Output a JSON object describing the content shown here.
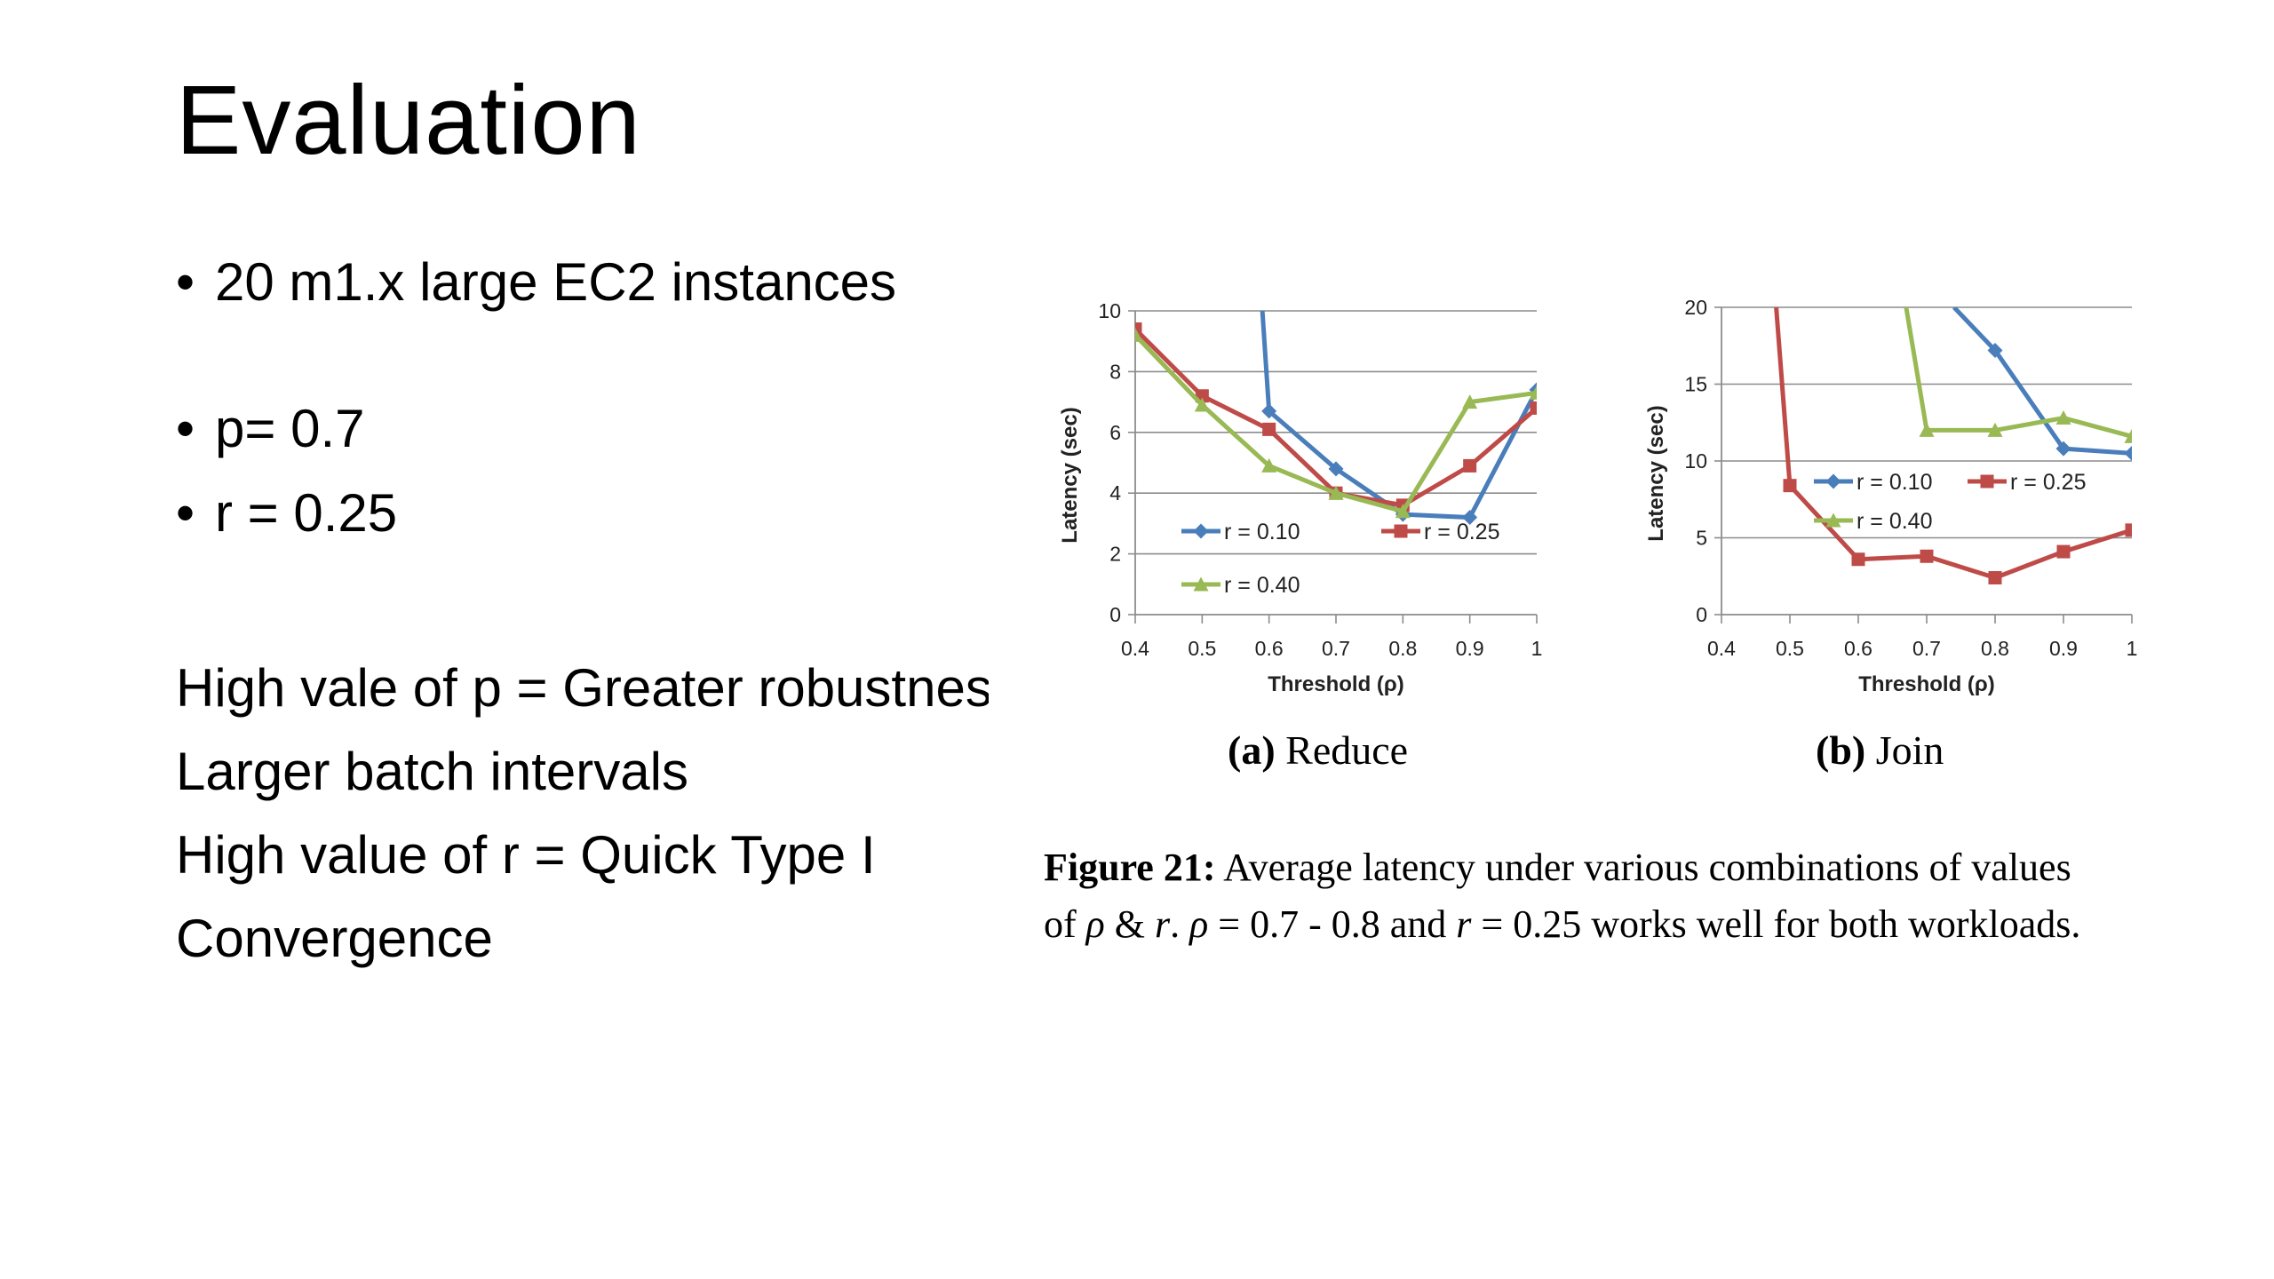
{
  "slide": {
    "title": "Evaluation",
    "bullets": [
      "20 m1.x large EC2 instances",
      "p= 0.7",
      "r = 0.25"
    ],
    "notes": [
      "High vale of p = Greater robustness",
      "Larger batch intervals",
      "High value of r = Quick Type I",
      "Convergence"
    ]
  },
  "chart_data": [
    {
      "type": "line",
      "subcaption_letter": "(a)",
      "subcaption": "Reduce",
      "xlabel": "Threshold (ρ)",
      "ylabel": "Latency (sec)",
      "xlim": [
        0.4,
        1
      ],
      "ylim": [
        0,
        10
      ],
      "x_ticks": [
        "0.4",
        "0.5",
        "0.6",
        "0.7",
        "0.8",
        "0.9",
        "1"
      ],
      "y_ticks": [
        "0",
        "2",
        "4",
        "6",
        "8",
        "10"
      ],
      "grid": true,
      "series": [
        {
          "name": "r = 0.10",
          "color": "#4a7ebb",
          "marker": "diamond",
          "x": [
            0.59,
            0.6,
            0.7,
            0.8,
            0.9,
            1.0
          ],
          "y": [
            10,
            6.7,
            4.8,
            3.3,
            3.2,
            7.4
          ]
        },
        {
          "name": "r = 0.25",
          "color": "#be4b48",
          "marker": "square",
          "x": [
            0.4,
            0.5,
            0.6,
            0.7,
            0.8,
            0.9,
            1.0
          ],
          "y": [
            9.4,
            7.2,
            6.1,
            4.0,
            3.6,
            4.9,
            6.8
          ]
        },
        {
          "name": "r = 0.40",
          "color": "#98b954",
          "marker": "triangle",
          "x": [
            0.4,
            0.5,
            0.6,
            0.7,
            0.8,
            0.9,
            1.0
          ],
          "y": [
            9.2,
            6.9,
            4.9,
            4.0,
            3.4,
            7.0,
            7.3
          ]
        }
      ]
    },
    {
      "type": "line",
      "subcaption_letter": "(b)",
      "subcaption": "Join",
      "xlabel": "Threshold (ρ)",
      "ylabel": "Latency (sec)",
      "xlim": [
        0.4,
        1
      ],
      "ylim": [
        0,
        20
      ],
      "x_ticks": [
        "0.4",
        "0.5",
        "0.6",
        "0.7",
        "0.8",
        "0.9",
        "1"
      ],
      "y_ticks": [
        "0",
        "5",
        "10",
        "15",
        "20"
      ],
      "grid": true,
      "series": [
        {
          "name": "r = 0.10",
          "color": "#4a7ebb",
          "marker": "diamond",
          "x": [
            0.74,
            0.8,
            0.9,
            1.0
          ],
          "y": [
            20,
            17.2,
            10.8,
            10.5
          ]
        },
        {
          "name": "r = 0.25",
          "color": "#be4b48",
          "marker": "square",
          "x": [
            0.48,
            0.5,
            0.6,
            0.7,
            0.8,
            0.9,
            1.0
          ],
          "y": [
            20,
            8.4,
            3.6,
            3.8,
            2.4,
            4.1,
            5.5
          ]
        },
        {
          "name": "r = 0.40",
          "color": "#98b954",
          "marker": "triangle",
          "x": [
            0.67,
            0.7,
            0.8,
            0.9,
            1.0
          ],
          "y": [
            20,
            12.0,
            12.0,
            12.8,
            11.6
          ]
        }
      ]
    }
  ],
  "figure_caption": {
    "label": "Figure 21:",
    "line1_rest": " Average latency under various combinations of values",
    "line2_of": "of ",
    "rho": "ρ",
    "amp": " & ",
    "r_sym": "r",
    "dot_sp": ". ",
    "rho_eq": " =  0.7 - 0.8 and ",
    "r_eq": " = 0.25 works well for both workloads."
  }
}
